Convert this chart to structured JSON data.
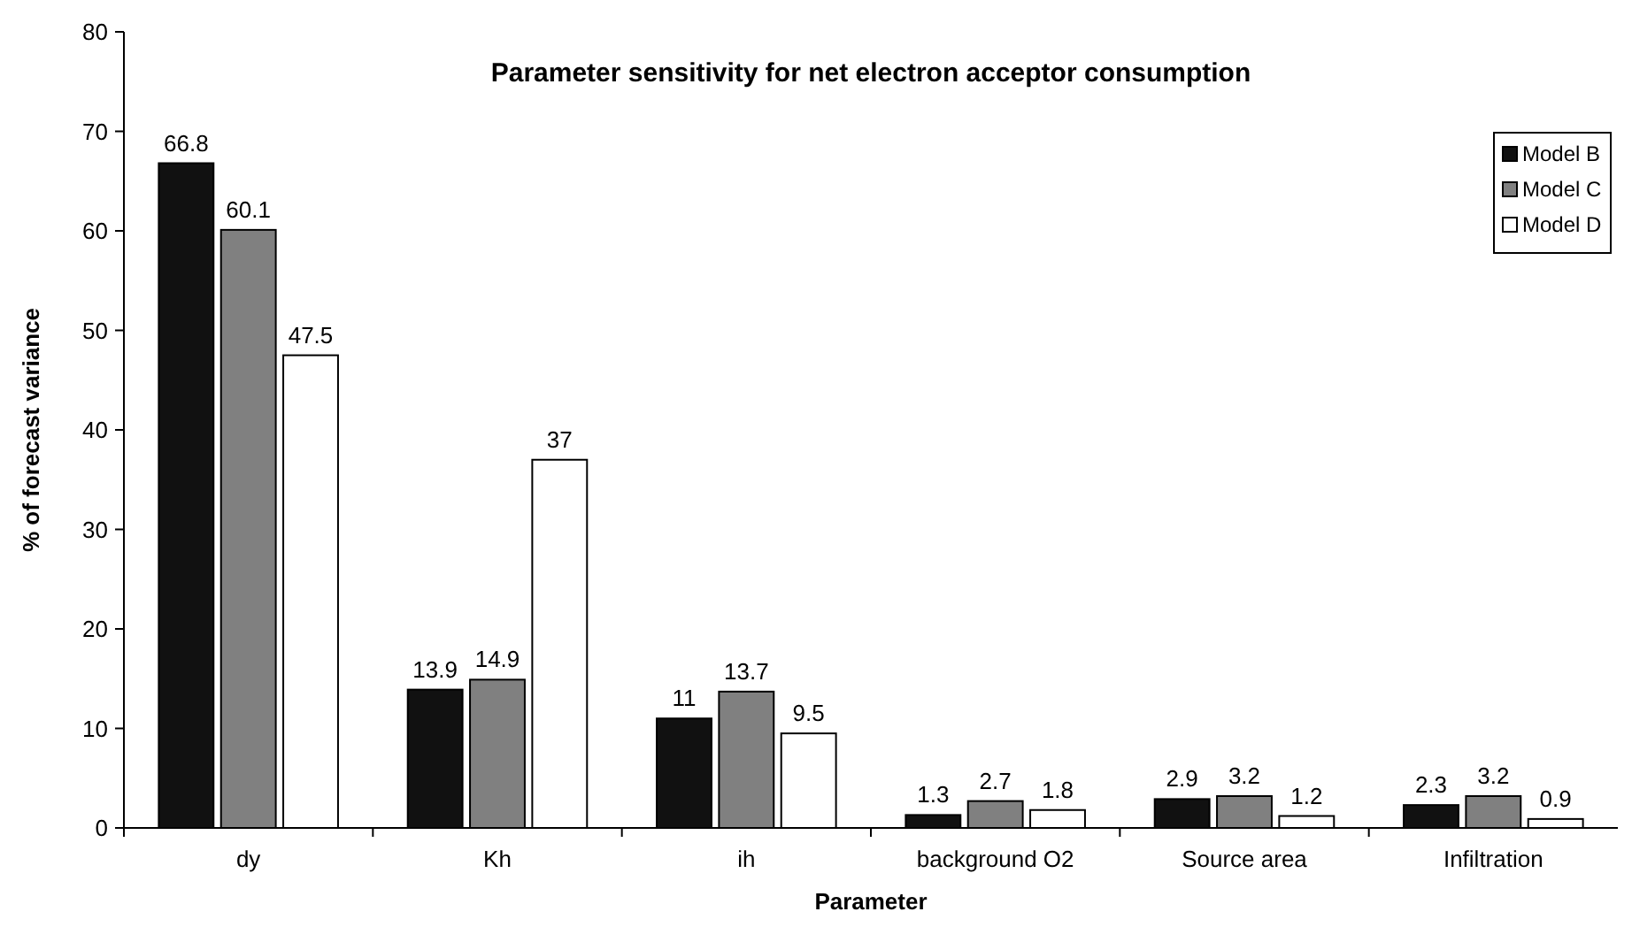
{
  "chart_data": {
    "type": "bar",
    "title": "Parameter sensitivity for net electron acceptor consumption",
    "xlabel": "Parameter",
    "ylabel": "% of forecast variance",
    "categories": [
      "dy",
      "Kh",
      "ih",
      "background O2",
      "Source area",
      "Infiltration"
    ],
    "series": [
      {
        "name": "Model B",
        "color": "#111111",
        "values": [
          66.8,
          13.9,
          11,
          1.3,
          2.9,
          2.3
        ]
      },
      {
        "name": "Model C",
        "color": "#808080",
        "values": [
          60.1,
          14.9,
          13.7,
          2.7,
          3.2,
          3.2
        ]
      },
      {
        "name": "Model D",
        "color": "#ffffff",
        "values": [
          47.5,
          37,
          9.5,
          1.8,
          1.2,
          0.9
        ]
      }
    ],
    "ylim": [
      0,
      80
    ],
    "yticks": [
      0,
      10,
      20,
      30,
      40,
      50,
      60,
      70,
      80
    ],
    "grid": false,
    "legend": "top right",
    "data_labels": true
  }
}
